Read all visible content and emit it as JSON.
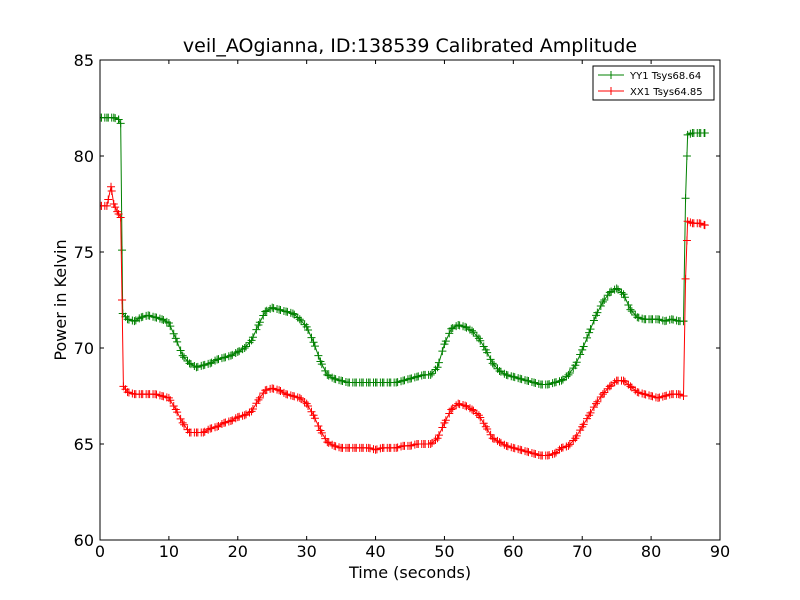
{
  "chart_data": {
    "type": "line",
    "title": "veil_AOgianna, ID:138539 Calibrated Amplitude",
    "xlabel": "Time (seconds)",
    "ylabel": "Power in Kelvin",
    "xlim": [
      0,
      90
    ],
    "ylim": [
      60,
      85
    ],
    "x_ticks": [
      "0",
      "10",
      "20",
      "30",
      "40",
      "50",
      "60",
      "70",
      "80",
      "90"
    ],
    "y_ticks": [
      "60",
      "65",
      "70",
      "75",
      "80",
      "85"
    ],
    "grid": false,
    "legend_position": "top-right",
    "marker": "+",
    "series": [
      {
        "name": "YY1 Tsys68.64",
        "color": "#008000",
        "points": [
          [
            0.2,
            82.0
          ],
          [
            1.0,
            82.0
          ],
          [
            2.0,
            82.0
          ],
          [
            2.7,
            81.9
          ],
          [
            3.0,
            81.7
          ],
          [
            3.3,
            71.8
          ],
          [
            4.0,
            71.5
          ],
          [
            5.0,
            71.4
          ],
          [
            6.0,
            71.6
          ],
          [
            7.0,
            71.7
          ],
          [
            8.0,
            71.6
          ],
          [
            9.0,
            71.5
          ],
          [
            10.0,
            71.3
          ],
          [
            11.0,
            70.5
          ],
          [
            12.0,
            69.6
          ],
          [
            13.0,
            69.2
          ],
          [
            14.0,
            69.0
          ],
          [
            15.0,
            69.1
          ],
          [
            16.0,
            69.2
          ],
          [
            17.0,
            69.4
          ],
          [
            18.0,
            69.5
          ],
          [
            19.0,
            69.6
          ],
          [
            20.0,
            69.8
          ],
          [
            21.0,
            70.0
          ],
          [
            22.0,
            70.4
          ],
          [
            23.0,
            71.2
          ],
          [
            24.0,
            71.9
          ],
          [
            25.0,
            72.1
          ],
          [
            26.0,
            72.0
          ],
          [
            27.0,
            71.9
          ],
          [
            28.0,
            71.8
          ],
          [
            29.0,
            71.5
          ],
          [
            30.0,
            71.1
          ],
          [
            31.0,
            70.3
          ],
          [
            32.0,
            69.3
          ],
          [
            33.0,
            68.6
          ],
          [
            34.0,
            68.4
          ],
          [
            35.0,
            68.3
          ],
          [
            36.0,
            68.2
          ],
          [
            37.0,
            68.2
          ],
          [
            38.0,
            68.2
          ],
          [
            39.0,
            68.2
          ],
          [
            40.0,
            68.2
          ],
          [
            41.0,
            68.2
          ],
          [
            42.0,
            68.2
          ],
          [
            43.0,
            68.2
          ],
          [
            44.0,
            68.3
          ],
          [
            45.0,
            68.4
          ],
          [
            46.0,
            68.5
          ],
          [
            47.0,
            68.6
          ],
          [
            48.0,
            68.6
          ],
          [
            49.0,
            69.0
          ],
          [
            50.0,
            70.2
          ],
          [
            51.0,
            71.0
          ],
          [
            52.0,
            71.2
          ],
          [
            53.0,
            71.1
          ],
          [
            54.0,
            70.9
          ],
          [
            55.0,
            70.5
          ],
          [
            56.0,
            69.9
          ],
          [
            57.0,
            69.2
          ],
          [
            58.0,
            68.8
          ],
          [
            59.0,
            68.6
          ],
          [
            60.0,
            68.5
          ],
          [
            61.0,
            68.4
          ],
          [
            62.0,
            68.3
          ],
          [
            63.0,
            68.2
          ],
          [
            64.0,
            68.1
          ],
          [
            65.0,
            68.1
          ],
          [
            66.0,
            68.2
          ],
          [
            67.0,
            68.3
          ],
          [
            68.0,
            68.6
          ],
          [
            69.0,
            69.1
          ],
          [
            70.0,
            69.9
          ],
          [
            71.0,
            70.8
          ],
          [
            72.0,
            71.7
          ],
          [
            73.0,
            72.4
          ],
          [
            74.0,
            72.9
          ],
          [
            75.0,
            73.1
          ],
          [
            76.0,
            72.8
          ],
          [
            77.0,
            72.0
          ],
          [
            78.0,
            71.6
          ],
          [
            79.0,
            71.5
          ],
          [
            80.0,
            71.5
          ],
          [
            81.0,
            71.5
          ],
          [
            82.0,
            71.4
          ],
          [
            83.0,
            71.5
          ],
          [
            84.0,
            71.4
          ],
          [
            84.7,
            71.4
          ],
          [
            85.0,
            77.8
          ],
          [
            85.3,
            81.1
          ],
          [
            86.0,
            81.2
          ],
          [
            87.0,
            81.2
          ],
          [
            87.8,
            81.2
          ]
        ]
      },
      {
        "name": "XX1 Tsys64.85",
        "color": "#ff0000",
        "points": [
          [
            0.2,
            77.4
          ],
          [
            1.0,
            77.4
          ],
          [
            1.6,
            78.4
          ],
          [
            2.0,
            77.5
          ],
          [
            2.5,
            77.1
          ],
          [
            3.0,
            76.8
          ],
          [
            3.2,
            72.5
          ],
          [
            3.4,
            68.0
          ],
          [
            4.0,
            67.7
          ],
          [
            5.0,
            67.6
          ],
          [
            6.0,
            67.6
          ],
          [
            7.0,
            67.6
          ],
          [
            8.0,
            67.6
          ],
          [
            9.0,
            67.5
          ],
          [
            10.0,
            67.4
          ],
          [
            11.0,
            66.8
          ],
          [
            12.0,
            66.1
          ],
          [
            13.0,
            65.6
          ],
          [
            14.0,
            65.6
          ],
          [
            15.0,
            65.6
          ],
          [
            16.0,
            65.8
          ],
          [
            17.0,
            65.9
          ],
          [
            18.0,
            66.1
          ],
          [
            19.0,
            66.2
          ],
          [
            20.0,
            66.4
          ],
          [
            21.0,
            66.5
          ],
          [
            22.0,
            66.7
          ],
          [
            23.0,
            67.3
          ],
          [
            24.0,
            67.8
          ],
          [
            25.0,
            67.9
          ],
          [
            26.0,
            67.8
          ],
          [
            27.0,
            67.6
          ],
          [
            28.0,
            67.5
          ],
          [
            29.0,
            67.4
          ],
          [
            30.0,
            67.1
          ],
          [
            31.0,
            66.5
          ],
          [
            32.0,
            65.7
          ],
          [
            33.0,
            65.1
          ],
          [
            34.0,
            64.9
          ],
          [
            35.0,
            64.8
          ],
          [
            36.0,
            64.8
          ],
          [
            37.0,
            64.8
          ],
          [
            38.0,
            64.8
          ],
          [
            39.0,
            64.8
          ],
          [
            40.0,
            64.7
          ],
          [
            41.0,
            64.8
          ],
          [
            42.0,
            64.8
          ],
          [
            43.0,
            64.8
          ],
          [
            44.0,
            64.9
          ],
          [
            45.0,
            64.9
          ],
          [
            46.0,
            65.0
          ],
          [
            47.0,
            65.0
          ],
          [
            48.0,
            65.0
          ],
          [
            49.0,
            65.3
          ],
          [
            50.0,
            66.1
          ],
          [
            51.0,
            66.8
          ],
          [
            52.0,
            67.1
          ],
          [
            53.0,
            67.0
          ],
          [
            54.0,
            66.8
          ],
          [
            55.0,
            66.5
          ],
          [
            56.0,
            65.9
          ],
          [
            57.0,
            65.3
          ],
          [
            58.0,
            65.1
          ],
          [
            59.0,
            64.9
          ],
          [
            60.0,
            64.8
          ],
          [
            61.0,
            64.7
          ],
          [
            62.0,
            64.6
          ],
          [
            63.0,
            64.5
          ],
          [
            64.0,
            64.4
          ],
          [
            65.0,
            64.4
          ],
          [
            66.0,
            64.5
          ],
          [
            67.0,
            64.8
          ],
          [
            68.0,
            64.9
          ],
          [
            69.0,
            65.3
          ],
          [
            70.0,
            65.9
          ],
          [
            71.0,
            66.5
          ],
          [
            72.0,
            67.1
          ],
          [
            73.0,
            67.6
          ],
          [
            74.0,
            68.0
          ],
          [
            75.0,
            68.3
          ],
          [
            76.0,
            68.3
          ],
          [
            77.0,
            68.0
          ],
          [
            78.0,
            67.7
          ],
          [
            79.0,
            67.6
          ],
          [
            80.0,
            67.5
          ],
          [
            81.0,
            67.4
          ],
          [
            82.0,
            67.5
          ],
          [
            83.0,
            67.6
          ],
          [
            84.0,
            67.6
          ],
          [
            84.7,
            67.5
          ],
          [
            85.0,
            73.6
          ],
          [
            85.3,
            76.6
          ],
          [
            86.0,
            76.5
          ],
          [
            87.0,
            76.5
          ],
          [
            87.8,
            76.4
          ]
        ]
      }
    ]
  }
}
